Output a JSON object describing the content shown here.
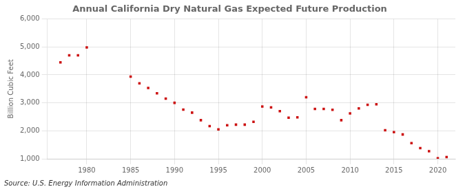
{
  "chart_data": {
    "type": "scatter",
    "title": "Annual California Dry Natural Gas Expected Future Production",
    "ylabel": "Billion Cubic Feet",
    "annotations": [
      "Source: U.S. Energy Information Administration"
    ],
    "color": "#cc1111",
    "marker": "square",
    "grid": true,
    "x": [
      1977,
      1978,
      1979,
      1980,
      1985,
      1986,
      1987,
      1988,
      1989,
      1990,
      1991,
      1992,
      1993,
      1994,
      1995,
      1996,
      1997,
      1998,
      1999,
      2000,
      2001,
      2002,
      2003,
      2004,
      2005,
      2006,
      2007,
      2008,
      2009,
      2010,
      2011,
      2012,
      2013,
      2014,
      2015,
      2016,
      2017,
      2018,
      2019,
      2020,
      2021
    ],
    "values": [
      4450,
      4700,
      4700,
      4980,
      3940,
      3700,
      3530,
      3340,
      3150,
      3000,
      2760,
      2650,
      2380,
      2170,
      2050,
      2200,
      2220,
      2220,
      2320,
      2870,
      2840,
      2700,
      2470,
      2480,
      3200,
      2780,
      2780,
      2750,
      2380,
      2620,
      2800,
      2930,
      2950,
      2020,
      1950,
      1870,
      1560,
      1380,
      1270,
      1020,
      1060
    ],
    "xlim": [
      1975.5,
      2022
    ],
    "xticks": [
      1980,
      1985,
      1990,
      1995,
      2000,
      2005,
      2010,
      2015,
      2020
    ],
    "ylim": [
      1000,
      6000
    ],
    "yticks": [
      {
        "value": 1000,
        "label": "1,000"
      },
      {
        "value": 2000,
        "label": "2,000"
      },
      {
        "value": 3000,
        "label": "3,000"
      },
      {
        "value": 4000,
        "label": "4,000"
      },
      {
        "value": 5000,
        "label": "5,000"
      },
      {
        "value": 6000,
        "label": "6,000"
      }
    ]
  }
}
